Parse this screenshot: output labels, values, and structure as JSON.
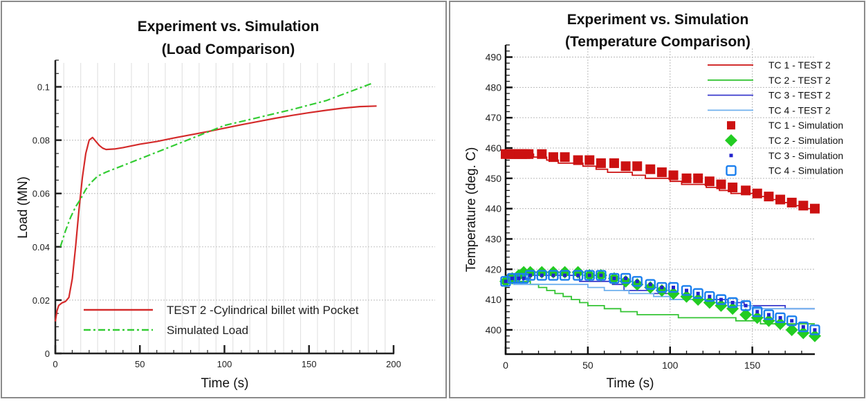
{
  "chart_data": [
    {
      "type": "line",
      "title": "Experiment vs. Simulation",
      "subtitle": "(Load Comparison)",
      "xlabel": "Time (s)",
      "ylabel": "Load (MN)",
      "xlim": [
        0,
        200
      ],
      "ylim": [
        0,
        0.11
      ],
      "xticks": [
        0,
        50,
        100,
        150,
        200
      ],
      "yticks": [
        0,
        0.02,
        0.04,
        0.06,
        0.08,
        0.1
      ],
      "ytick_labels": [
        "0",
        "0.02",
        "0.04",
        "0.06",
        "0.08",
        "0.1"
      ],
      "grid": true,
      "legend_position": "bottom-right",
      "series": [
        {
          "name": "TEST 2 -Cylindrical billet with Pocket",
          "color": "#d42a2a",
          "style": "solid",
          "x": [
            0,
            1,
            2,
            4,
            6,
            8,
            10,
            12,
            14,
            16,
            18,
            20,
            22,
            24,
            26,
            28,
            30,
            35,
            40,
            50,
            60,
            70,
            80,
            90,
            100,
            110,
            120,
            130,
            140,
            150,
            160,
            170,
            180,
            190
          ],
          "y": [
            0.012,
            0.016,
            0.018,
            0.019,
            0.0195,
            0.021,
            0.028,
            0.04,
            0.054,
            0.066,
            0.075,
            0.08,
            0.081,
            0.0795,
            0.078,
            0.077,
            0.0765,
            0.0767,
            0.0772,
            0.0785,
            0.0795,
            0.0808,
            0.082,
            0.0832,
            0.0845,
            0.0858,
            0.087,
            0.0882,
            0.0893,
            0.0903,
            0.0912,
            0.092,
            0.0926,
            0.0928
          ]
        },
        {
          "name": "Simulated Load",
          "color": "#33cc33",
          "style": "dashdot",
          "x": [
            3,
            6,
            9,
            12,
            15,
            18,
            21,
            25,
            30,
            40,
            60,
            80,
            100,
            120,
            140,
            160,
            188
          ],
          "y": [
            0.04,
            0.046,
            0.051,
            0.055,
            0.058,
            0.0615,
            0.064,
            0.0665,
            0.068,
            0.0705,
            0.0755,
            0.0805,
            0.0855,
            0.0885,
            0.0915,
            0.0948,
            0.1015
          ]
        }
      ]
    },
    {
      "type": "line",
      "title": "Experiment vs. Simulation",
      "subtitle": "(Temperature Comparison)",
      "xlabel": "Time (s)",
      "ylabel": "Temperature (deg. C)",
      "xlim": [
        0,
        188
      ],
      "ylim": [
        392,
        494
      ],
      "xticks": [
        0,
        50,
        100,
        150
      ],
      "yticks": [
        400,
        410,
        420,
        430,
        440,
        450,
        460,
        470,
        480,
        490
      ],
      "grid": true,
      "legend_position": "top-right",
      "series": [
        {
          "name": "TC 1 - TEST 2",
          "color": "#cc1111",
          "kind": "step",
          "x": [
            0,
            15,
            17,
            25,
            32,
            40,
            47,
            55,
            62,
            70,
            77,
            85,
            92,
            100,
            107,
            115,
            122,
            130,
            137,
            145,
            152,
            160,
            167,
            175,
            182,
            188
          ],
          "y": [
            458,
            458,
            457,
            456,
            455,
            455,
            454,
            453,
            452,
            452,
            451,
            450,
            450,
            449,
            448,
            448,
            447,
            446,
            445,
            445,
            444,
            443,
            442,
            441,
            440,
            440
          ]
        },
        {
          "name": "TC 2 - TEST 2",
          "color": "#33c433",
          "kind": "step",
          "x": [
            0,
            15,
            20,
            25,
            30,
            35,
            40,
            45,
            50,
            60,
            70,
            80,
            90,
            100,
            105,
            120,
            140,
            155,
            188
          ],
          "y": [
            416,
            415,
            414,
            413,
            412,
            411,
            410,
            409,
            408,
            407,
            406,
            405,
            405,
            405,
            404,
            404,
            403,
            402,
            402
          ]
        },
        {
          "name": "TC 3 - TEST 2",
          "color": "#3a3acc",
          "kind": "step",
          "x": [
            0,
            5,
            15,
            40,
            45,
            65,
            72,
            88,
            100,
            115,
            135,
            145,
            160,
            165,
            170,
            188
          ],
          "y": [
            416,
            417,
            418,
            418,
            416,
            415,
            413,
            412,
            410,
            410,
            409,
            408,
            408,
            408,
            407,
            407
          ]
        },
        {
          "name": "TC 4 - TEST 2",
          "color": "#6fb0ee",
          "kind": "step",
          "x": [
            0,
            5,
            40,
            50,
            60,
            75,
            90,
            100,
            110,
            125,
            140,
            150,
            160,
            188
          ],
          "y": [
            416,
            415,
            415,
            414,
            413,
            412,
            411,
            410,
            410,
            409,
            408,
            407,
            407,
            407
          ]
        },
        {
          "name": "TC 1 - Simulation",
          "color": "#cc1111",
          "marker": "square",
          "x": [
            0,
            2,
            4,
            6,
            8,
            10,
            12,
            14,
            22,
            29,
            36,
            44,
            51,
            58,
            66,
            73,
            80,
            88,
            95,
            102,
            110,
            117,
            124,
            131,
            138,
            146,
            153,
            160,
            167,
            174,
            181,
            188
          ],
          "y": [
            458,
            458,
            458,
            458,
            458,
            458,
            458,
            458,
            458,
            457,
            457,
            456,
            456,
            455,
            455,
            454,
            454,
            453,
            452,
            451,
            450,
            450,
            449,
            448,
            447,
            446,
            445,
            444,
            443,
            442,
            441,
            440
          ]
        },
        {
          "name": "TC 2 - Simulation",
          "color": "#22cc22",
          "marker": "diamond",
          "x": [
            0,
            4,
            8,
            11,
            15,
            22,
            29,
            36,
            44,
            51,
            58,
            66,
            73,
            80,
            88,
            95,
            102,
            110,
            117,
            124,
            131,
            138,
            146,
            153,
            160,
            167,
            174,
            181,
            188
          ],
          "y": [
            416,
            417,
            418,
            419,
            419,
            419,
            419,
            419,
            419,
            418,
            418,
            417,
            416,
            415,
            414,
            413,
            412,
            411,
            410,
            409,
            408,
            407,
            405,
            404,
            403,
            402,
            400,
            399,
            398
          ]
        },
        {
          "name": "TC 3 - Simulation",
          "color": "#2222cc",
          "marker": "dot",
          "x": [
            0,
            4,
            8,
            11,
            15,
            22,
            29,
            36,
            44,
            51,
            58,
            66,
            73,
            80,
            88,
            95,
            102,
            110,
            117,
            124,
            131,
            138,
            146,
            153,
            160,
            167,
            174,
            181,
            188
          ],
          "y": [
            416,
            417,
            417,
            417,
            418,
            418,
            418,
            418,
            418,
            418,
            418,
            417,
            417,
            416,
            415,
            414,
            414,
            413,
            412,
            411,
            410,
            409,
            408,
            406,
            405,
            404,
            403,
            401,
            400
          ]
        },
        {
          "name": "TC 4 - Simulation",
          "color": "#1a7fee",
          "marker": "open-square",
          "x": [
            0,
            4,
            8,
            11,
            15,
            22,
            29,
            36,
            44,
            51,
            58,
            66,
            73,
            80,
            88,
            95,
            102,
            110,
            117,
            124,
            131,
            138,
            146,
            153,
            160,
            167,
            174,
            181,
            188
          ],
          "y": [
            416,
            417,
            417,
            417,
            418,
            418,
            418,
            418,
            418,
            418,
            418,
            417,
            417,
            416,
            415,
            414,
            414,
            413,
            412,
            411,
            410,
            409,
            408,
            406,
            405,
            404,
            403,
            401,
            400
          ]
        }
      ]
    }
  ]
}
